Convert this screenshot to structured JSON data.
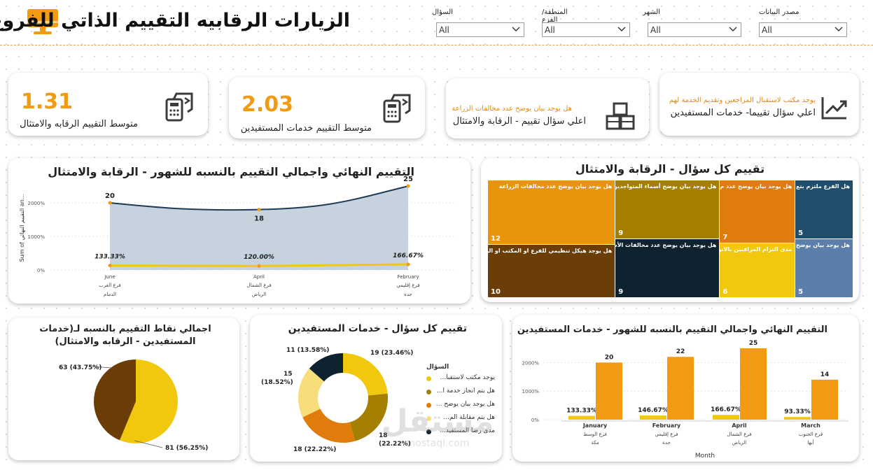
{
  "header": {
    "title": "الزيارات الرقابيه التقييم الذاتي للفروع",
    "logo_color": "#f29a12"
  },
  "slicers": [
    {
      "label": "السؤال",
      "value": "All"
    },
    {
      "label": "المنطقة/الفرع",
      "value": "All"
    },
    {
      "label": "الشهر",
      "value": "All"
    },
    {
      "label": "مصدر البيانات",
      "value": "All"
    }
  ],
  "kpis": {
    "oversight_avg": {
      "value": "1.31",
      "label": "متوسط التقييم الرقابه والامتثال"
    },
    "services_avg": {
      "value": "2.03",
      "label": "متوسط التقييم خدمات المستفيدين"
    },
    "oversight_top": {
      "question": "هل يوجد بيان يوضح عدد مخالفات الزراعة",
      "label": "اعلي سؤال تقييم - الرقابة والامتثال"
    },
    "services_top": {
      "question": "يوجد مكتب لاستقبال المراجعين وتقديم الخدمة لهم",
      "label": "اعلي سؤال تقييما- خدمات المستفيدين"
    }
  },
  "area_chart": {
    "title": "التقييم النهائي واجمالي التقييم بالنسبه للشهور - الرقابة والامتثال",
    "ylabel": "Sum of التقييم النهائي an..."
  },
  "treemap": {
    "title": "تقييم كل سؤال - الرقابة والامتثال"
  },
  "pie_chart": {
    "title": "اجمالي نقاط التقييم بالنسبه لـ(خدمات المستفيدين - الرقابه والامتثال)"
  },
  "donut_chart": {
    "title": "تقييم كل سؤال - خدمات المستفيدين",
    "legend_title": "السؤال"
  },
  "bar_chart": {
    "title": "التقييم النهائي واجمالي التقييم بالنسبه للشهور - خدمات المستفيدين",
    "xlabel": "Month"
  },
  "watermark": {
    "text": "مستقل",
    "sub": "mostaql.com"
  },
  "colors": {
    "accent": "#f29a12",
    "navy": "#1f4e6e",
    "area_fill": "#c6d2dd",
    "yellow": "#f2c80f",
    "brown": "#6b3d07"
  },
  "chart_data": [
    {
      "type": "area",
      "title": "التقييم النهائي واجمالي التقييم بالنسبه للشهور - الرقابة والامتثال",
      "ylabel": "Sum of التقييم النهائي an...",
      "x": [
        "June",
        "April",
        "February"
      ],
      "x_sub1": [
        "فرع الغرب",
        "فرع الشمال",
        "فرع إقليمي"
      ],
      "x_sub2": [
        "الدمام",
        "الرياض",
        "جدة"
      ],
      "yticks": [
        "0%",
        "1000%",
        "2000%"
      ],
      "ylim": [
        0,
        2500
      ],
      "series": [
        {
          "values": [
            2000,
            1800,
            2500
          ],
          "labels": [
            "20",
            "18",
            "25"
          ]
        },
        {
          "values": [
            133.33,
            120.0,
            166.67
          ],
          "labels": [
            "133.33%",
            "120.00%",
            "166.67%"
          ]
        }
      ]
    },
    {
      "type": "treemap",
      "title": "تقييم كل سؤال - الرقابة والامتثال",
      "items": [
        {
          "label": "هل يوجد بيان يوضح عدد مخالفات الزراعة",
          "value": 12,
          "color": "#e8950c"
        },
        {
          "label": "هل يوجد هيكل تنظيمي للفرع او المكتب او الوحدة",
          "value": 10,
          "color": "#6b3d07"
        },
        {
          "label": "هل يوجد بيان يوضح أسماء المتواجدين",
          "value": 9,
          "color": "#a57f00"
        },
        {
          "label": "هل يوجد بيان يوضح عدد مخالفات الأسو",
          "value": 9,
          "color": "#0f2230"
        },
        {
          "label": "هل يوجد بيان يوضح عدد م",
          "value": 7,
          "color": "#e07c0c"
        },
        {
          "label": "مدى التزام المراقبين بالانواع",
          "value": 6,
          "color": "#f2c80f"
        },
        {
          "label": "هل الفرع ملتزم بتع",
          "value": 5,
          "color": "#1f4e6e"
        },
        {
          "label": "هل يوجد بيان يوضح",
          "value": 5,
          "color": "#5b7eaa"
        }
      ]
    },
    {
      "type": "pie",
      "title": "اجمالي نقاط التقييم بالنسبه لـ(خدمات المستفيدين - الرقابه والامتثال)",
      "slices": [
        {
          "value": 81,
          "label": "81 (56.25%)",
          "color": "#f2c80f"
        },
        {
          "value": 63,
          "label": "63 (43.75%)",
          "color": "#6b3d07"
        }
      ]
    },
    {
      "type": "pie",
      "subtype": "donut",
      "title": "تقييم كل سؤال - خدمات المستفيدين",
      "legend_title": "السؤال",
      "slices": [
        {
          "name": "يوجد مكتب لاستقبا...",
          "value": 19,
          "label": "19 (23.46%)",
          "color": "#f2c80f"
        },
        {
          "name": "هل يتم انجاز خدمة ا...",
          "value": 18,
          "label": "18\n(22.22%)",
          "color": "#a57f00"
        },
        {
          "name": "هل يوجد بيان يوضح ...",
          "value": 18,
          "label": "18 (22.22%)",
          "color": "#e07c0c"
        },
        {
          "name": "هل يتم مقابلة الم...",
          "value": 15,
          "label": "15\n(18.52%)",
          "color": "#f7de7a"
        },
        {
          "name": "مدى رضا المستفيد...",
          "value": 11,
          "label": "11 (13.58%)",
          "color": "#0f2230"
        }
      ]
    },
    {
      "type": "bar",
      "title": "التقييم النهائي واجمالي التقييم بالنسبه للشهور - خدمات المستفيدين",
      "xlabel": "Month",
      "categories": [
        "January",
        "February",
        "April",
        "March"
      ],
      "x_sub1": [
        "فرع الوسط",
        "فرع إقليمي",
        "فرع الشمال",
        "فرع الجنوب"
      ],
      "x_sub2": [
        "مكة",
        "جدة",
        "الرياض",
        "أبها"
      ],
      "yticks": [
        "0%",
        "1000%",
        "2000%"
      ],
      "ylim": [
        0,
        2500
      ],
      "series": [
        {
          "values": [
            133.33,
            146.67,
            166.67,
            93.33
          ],
          "labels": [
            "133.33%",
            "146.67%",
            "166.67%",
            "93.33%"
          ],
          "color": "#f2c80f"
        },
        {
          "values": [
            2000,
            2200,
            2500,
            1400
          ],
          "labels": [
            "20",
            "22",
            "25",
            "14"
          ],
          "color": "#f29a12"
        }
      ]
    }
  ]
}
